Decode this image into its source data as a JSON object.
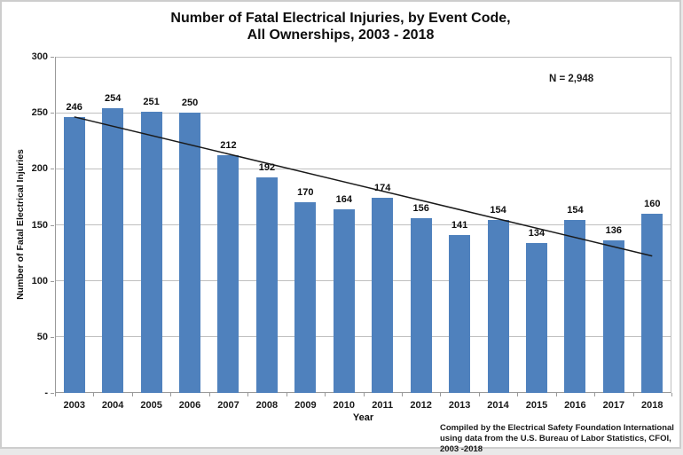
{
  "chart_data": {
    "type": "bar",
    "title_line1": "Number of Fatal Electrical Injuries, by Event Code,",
    "title_line2": "All Ownerships, 2003 - 2018",
    "categories": [
      "2003",
      "2004",
      "2005",
      "2006",
      "2007",
      "2008",
      "2009",
      "2010",
      "2011",
      "2012",
      "2013",
      "2014",
      "2015",
      "2016",
      "2017",
      "2018"
    ],
    "values": [
      246,
      254,
      251,
      250,
      212,
      192,
      170,
      164,
      174,
      156,
      141,
      154,
      134,
      154,
      136,
      160
    ],
    "xlabel": "Year",
    "ylabel": "Number of Fatal Electrical Injuries",
    "ylim": [
      0,
      300
    ],
    "ytick_step": 50,
    "ytick_zero_label": "-",
    "grid": true,
    "legend": false,
    "annotation": "N = 2,948",
    "trendline": "linear",
    "colors": {
      "bar": "#4F81BD",
      "trendline": "#1a1a1a",
      "gridline": "#bfbfbf",
      "axis_line": "#9a9a9a"
    },
    "footer_line1": "Compiled by the Electrical Safety Foundation International",
    "footer_line2": "using data from the U.S. Bureau of Labor Statistics, CFOI, 2003 -2018"
  }
}
